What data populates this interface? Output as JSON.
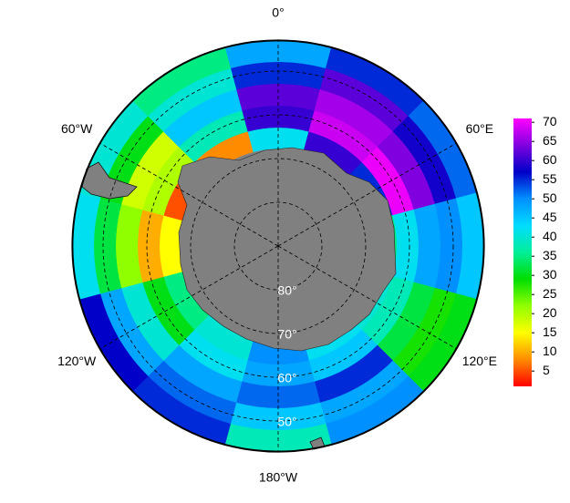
{
  "chart_data": {
    "type": "polar-heatmap",
    "boundary_lat": -43,
    "lat_edges": [
      -43,
      -48,
      -53,
      -58,
      -63,
      -68
    ],
    "lon_edges": [
      -15,
      15,
      45,
      75,
      105,
      135,
      165,
      195,
      225,
      255,
      285,
      315,
      345
    ],
    "values": [
      [
        48,
        55,
        52,
        45,
        30,
        50,
        38,
        55,
        57,
        42,
        40,
        35
      ],
      [
        55,
        62,
        58,
        50,
        28,
        48,
        45,
        52,
        48,
        32,
        30,
        40
      ],
      [
        62,
        66,
        64,
        48,
        32,
        55,
        52,
        48,
        40,
        22,
        18,
        45
      ],
      [
        60,
        68,
        70,
        42,
        38,
        45,
        48,
        42,
        30,
        10,
        20,
        38
      ],
      [
        42,
        60,
        55,
        35,
        40,
        42,
        50,
        40,
        35,
        15,
        5,
        8
      ]
    ],
    "colormap": [
      "#ff0000",
      "#ff8c00",
      "#ffff00",
      "#90ff00",
      "#00dd00",
      "#00ee99",
      "#00ddff",
      "#0090ff",
      "#0000c8",
      "#8000e0",
      "#ff00ff"
    ],
    "clim": [
      1,
      71
    ],
    "cticks": [
      5,
      10,
      15,
      20,
      25,
      30,
      35,
      40,
      45,
      50,
      55,
      60,
      65,
      70
    ],
    "lon_ticks": [
      {
        "value": 0,
        "label": "0°"
      },
      {
        "value": 60,
        "label": "60°E"
      },
      {
        "value": 120,
        "label": "120°E"
      },
      {
        "value": 180,
        "label": "180°W"
      },
      {
        "value": -120,
        "label": "120°W"
      },
      {
        "value": -60,
        "label": "60°W"
      }
    ],
    "lat_ticks": [
      {
        "value": -80,
        "label": "80°"
      },
      {
        "value": -70,
        "label": "70°"
      },
      {
        "value": -60,
        "label": "60°"
      },
      {
        "value": -50,
        "label": "50°"
      }
    ]
  }
}
